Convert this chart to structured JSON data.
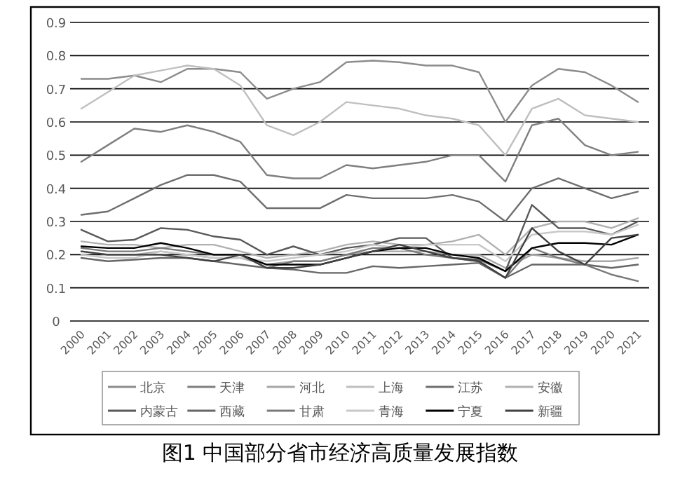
{
  "chart_data": {
    "type": "line",
    "title": "图1  中国部分省市经济高质量发展指数",
    "categories": [
      "2000",
      "2001",
      "2002",
      "2003",
      "2004",
      "2005",
      "2006",
      "2007",
      "2008",
      "2009",
      "2010",
      "2011",
      "2012",
      "2013",
      "2014",
      "2015",
      "2016",
      "2017",
      "2018",
      "2019",
      "2020",
      "2021"
    ],
    "ylim": [
      0,
      0.9
    ],
    "yticks": [
      0,
      0.1,
      0.2,
      0.3,
      0.4,
      0.5,
      0.6,
      0.7,
      0.8,
      0.9
    ],
    "grid": "y",
    "legend": "bottom",
    "line_style": "solid",
    "series": [
      {
        "name": "北京",
        "color": "#8c8c8c",
        "values": [
          0.73,
          0.73,
          0.74,
          0.72,
          0.76,
          0.76,
          0.75,
          0.67,
          0.7,
          0.72,
          0.78,
          0.785,
          0.78,
          0.77,
          0.77,
          0.75,
          0.6,
          0.71,
          0.76,
          0.75,
          0.71,
          0.66
        ]
      },
      {
        "name": "天津",
        "color": "#7f7f7f",
        "values": [
          0.48,
          0.53,
          0.58,
          0.57,
          0.59,
          0.57,
          0.54,
          0.44,
          0.43,
          0.43,
          0.47,
          0.46,
          0.47,
          0.48,
          0.5,
          0.5,
          0.42,
          0.59,
          0.61,
          0.53,
          0.5,
          0.51
        ]
      },
      {
        "name": "河北",
        "color": "#a6a6a6",
        "values": [
          0.21,
          0.2,
          0.2,
          0.21,
          0.2,
          0.19,
          0.19,
          0.17,
          0.18,
          0.18,
          0.2,
          0.21,
          0.21,
          0.21,
          0.2,
          0.2,
          0.16,
          0.2,
          0.19,
          0.18,
          0.18,
          0.19
        ]
      },
      {
        "name": "上海",
        "color": "#bfbfbf",
        "values": [
          0.64,
          0.69,
          0.74,
          0.755,
          0.77,
          0.76,
          0.71,
          0.59,
          0.56,
          0.6,
          0.66,
          0.65,
          0.64,
          0.62,
          0.61,
          0.59,
          0.5,
          0.64,
          0.67,
          0.62,
          0.61,
          0.6
        ]
      },
      {
        "name": "江苏",
        "color": "#6e6e6e",
        "values": [
          0.32,
          0.33,
          0.37,
          0.41,
          0.44,
          0.44,
          0.42,
          0.34,
          0.34,
          0.34,
          0.38,
          0.37,
          0.37,
          0.37,
          0.38,
          0.36,
          0.3,
          0.4,
          0.43,
          0.4,
          0.37,
          0.39
        ]
      },
      {
        "name": "安徽",
        "color": "#b0b0b0",
        "values": [
          0.24,
          0.23,
          0.23,
          0.22,
          0.23,
          0.23,
          0.21,
          0.19,
          0.2,
          0.21,
          0.23,
          0.24,
          0.23,
          0.23,
          0.24,
          0.26,
          0.2,
          0.28,
          0.3,
          0.3,
          0.28,
          0.31
        ]
      },
      {
        "name": "内蒙古",
        "color": "#595959",
        "values": [
          0.275,
          0.24,
          0.245,
          0.28,
          0.275,
          0.255,
          0.245,
          0.2,
          0.225,
          0.2,
          0.22,
          0.23,
          0.25,
          0.25,
          0.19,
          0.185,
          0.15,
          0.35,
          0.28,
          0.28,
          0.26,
          0.3
        ]
      },
      {
        "name": "西藏",
        "color": "#666666",
        "values": [
          0.19,
          0.18,
          0.185,
          0.19,
          0.19,
          0.18,
          0.17,
          0.16,
          0.155,
          0.145,
          0.145,
          0.165,
          0.16,
          0.165,
          0.17,
          0.175,
          0.13,
          0.17,
          0.17,
          0.17,
          0.16,
          0.17
        ]
      },
      {
        "name": "甘肃",
        "color": "#7a7a7a",
        "values": [
          0.22,
          0.21,
          0.21,
          0.22,
          0.21,
          0.2,
          0.2,
          0.16,
          0.18,
          0.18,
          0.2,
          0.22,
          0.22,
          0.2,
          0.19,
          0.18,
          0.13,
          0.22,
          0.19,
          0.17,
          0.14,
          0.12
        ]
      },
      {
        "name": "青海",
        "color": "#c8c8c8",
        "values": [
          0.2,
          0.19,
          0.19,
          0.21,
          0.2,
          0.19,
          0.19,
          0.18,
          0.19,
          0.2,
          0.21,
          0.23,
          0.22,
          0.23,
          0.23,
          0.23,
          0.18,
          0.26,
          0.27,
          0.27,
          0.26,
          0.29
        ]
      },
      {
        "name": "宁夏",
        "color": "#000000",
        "values": [
          0.225,
          0.22,
          0.22,
          0.235,
          0.22,
          0.2,
          0.2,
          0.17,
          0.17,
          0.17,
          0.19,
          0.21,
          0.22,
          0.22,
          0.2,
          0.19,
          0.15,
          0.22,
          0.235,
          0.235,
          0.23,
          0.26
        ]
      },
      {
        "name": "新疆",
        "color": "#404040",
        "values": [
          0.21,
          0.2,
          0.2,
          0.2,
          0.19,
          0.18,
          0.2,
          0.16,
          0.16,
          0.17,
          0.19,
          0.21,
          0.23,
          0.21,
          0.19,
          0.18,
          0.13,
          0.28,
          0.21,
          0.17,
          0.25,
          0.26
        ]
      }
    ]
  }
}
